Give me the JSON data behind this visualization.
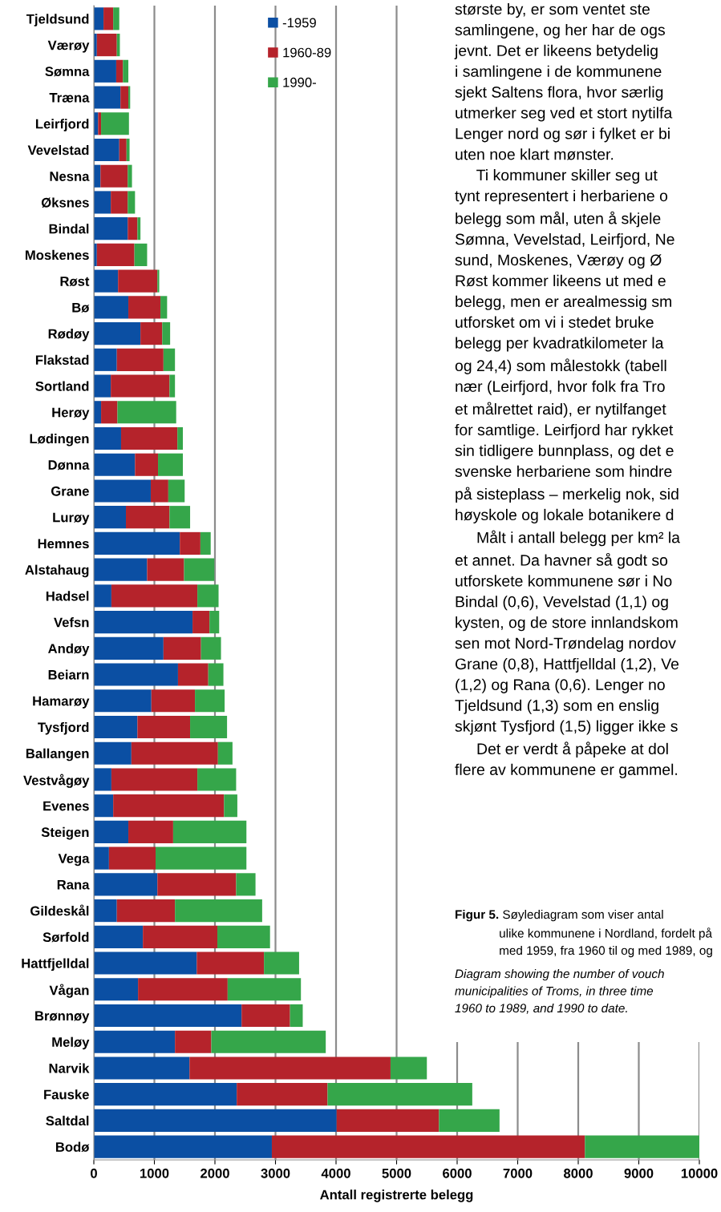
{
  "chart_data": {
    "type": "bar",
    "orientation": "horizontal",
    "stacked": true,
    "xlabel": "Antall registrerte belegg",
    "categories": [
      "Tjeldsund",
      "Værøy",
      "Sømna",
      "Træna",
      "Leirfjord",
      "Vevelstad",
      "Nesna",
      "Øksnes",
      "Bindal",
      "Moskenes",
      "Røst",
      "Bø",
      "Rødøy",
      "Flakstad",
      "Sortland",
      "Herøy",
      "Lødingen",
      "Dønna",
      "Grane",
      "Lurøy",
      "Hemnes",
      "Alstahaug",
      "Hadsel",
      "Vefsn",
      "Andøy",
      "Beiarn",
      "Hamarøy",
      "Tysfjord",
      "Ballangen",
      "Vestvågøy",
      "Evenes",
      "Steigen",
      "Vega",
      "Rana",
      "Gildeskål",
      "Sørfold",
      "Hattfjelldal",
      "Vågan",
      "Brønnøy",
      "Meløy",
      "Narvik",
      "Fauske",
      "Saltdal",
      "Bodø"
    ],
    "series": [
      {
        "name": "-1959",
        "color": "#0b4fa3",
        "values": [
          160,
          50,
          370,
          440,
          70,
          420,
          110,
          280,
          560,
          50,
          400,
          570,
          770,
          380,
          280,
          120,
          450,
          680,
          940,
          530,
          1420,
          880,
          290,
          1630,
          1150,
          1390,
          950,
          720,
          620,
          290,
          320,
          570,
          250,
          1050,
          380,
          810,
          1700,
          730,
          2440,
          1340,
          1580,
          2360,
          4010,
          2940
        ]
      },
      {
        "name": "1960-89",
        "color": "#b5232b",
        "values": [
          160,
          330,
          110,
          130,
          50,
          120,
          450,
          280,
          160,
          620,
          650,
          530,
          360,
          770,
          970,
          270,
          930,
          380,
          290,
          720,
          340,
          610,
          1420,
          280,
          620,
          500,
          720,
          870,
          1430,
          1420,
          1830,
          740,
          770,
          1300,
          960,
          1230,
          1110,
          1480,
          800,
          600,
          3320,
          1500,
          1690,
          5170
        ]
      },
      {
        "name": "1990-",
        "color": "#35a64a",
        "values": [
          100,
          50,
          90,
          30,
          460,
          50,
          70,
          120,
          50,
          210,
          30,
          110,
          130,
          190,
          90,
          970,
          90,
          410,
          270,
          340,
          170,
          500,
          350,
          160,
          330,
          250,
          490,
          610,
          240,
          640,
          220,
          1210,
          1500,
          320,
          1440,
          870,
          580,
          1210,
          210,
          1890,
          600,
          2390,
          1000,
          1890
        ]
      }
    ],
    "xlim": [
      0,
      10000
    ],
    "xticks": [
      0,
      1000,
      2000,
      3000,
      4000,
      5000,
      6000,
      7000,
      8000,
      9000,
      10000
    ],
    "grid": "x",
    "legend": "top",
    "annotations": [
      "største by, er som ventet ste\nsamlingene, og her har de ogs\njevnt. Det er likeens betydelig\ni samlingene i de kommunene\nsjekt Saltens flora, hvor særlig\nutmerker seg ved et stort nytilfa\nLenger nord og sør i fylket er bi\nuten noe klart mønster.\n     Ti kommuner skiller seg ut\ntynt representert i herbariene o\nbelegg som mål, uten å skjele\nSømna, Vevelstad, Leirfjord, Ne\nsund, Moskenes, Værøy og Ø\nRøst kommer likeens ut med e\nbelegg, men er arealmessig sm\nutforsket om vi i stedet bruke\nbelegg per kvadratkilometer la\nog 24,4) som målestokk (tabell\nnær (Leirfjord, hvor folk fra Tro\net målrettet raid), er nytilfanget\nfor samtlige. Leirfjord har rykket\nsin tidligere bunnplass, og det e\nsvenske herbariene som hindre\npå sisteplass – merkelig nok, sid\nhøyskole og lokale botanikere d\n     Målt i antall belegg per km² la\net annet. Da havner så godt so\nutforskete kommunene sør i No\nBindal (0,6), Vevelstad (1,1) og\nkysten, og de store innlandskom\nsen mot Nord-Trøndelag nordov\nGrane (0,8), Hattfjelldal (1,2), Ve\n(1,2) og Rana (0,6). Lenger no\nTjeldsund (1,3) som en enslig\nskjønt Tysfjord (1,5) ligger ikke s\n     Det er verdt å påpeke at dol\nflere av kommunene er gammel.",
      "Figur 5.",
      " Søylediagram som viser antal\nulike kommunene i Nordland, fordelt på\nmed 1959, fra 1960 til og med 1989, og",
      "Diagram showing the number of vouch\nmunicipalities of Troms, in three time\n1960 to 1989, and 1990 to date."
    ]
  }
}
